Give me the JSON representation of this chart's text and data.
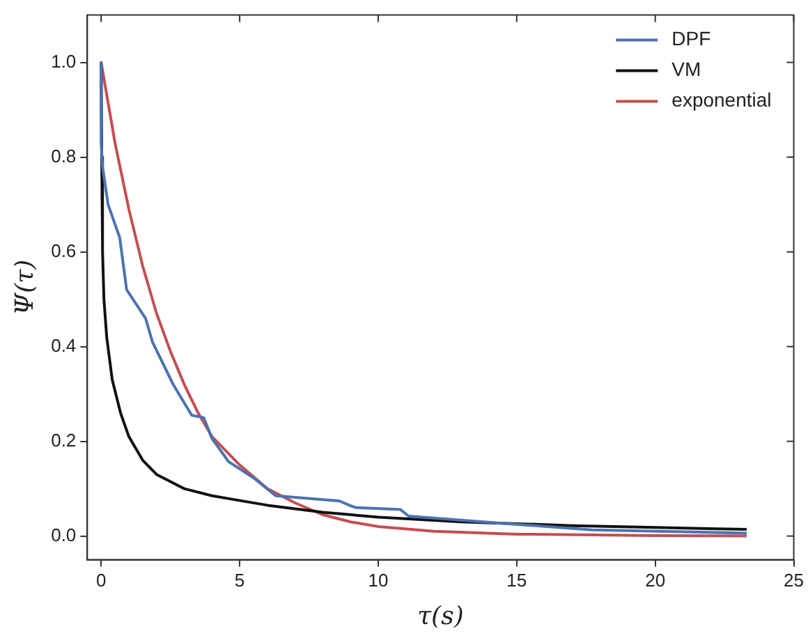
{
  "chart_data": {
    "type": "line",
    "xlabel": "τ(s)",
    "ylabel": "Ψ(τ)",
    "xlim": [
      -0.5,
      25
    ],
    "xticks": [
      0,
      5,
      10,
      15,
      20,
      25
    ],
    "ylim": [
      -0.05,
      1.1
    ],
    "yticks": [
      {
        "value": 0,
        "label": "0.0"
      },
      {
        "value": 0.2,
        "label": "0.2"
      },
      {
        "value": 0.4,
        "label": "0.4"
      },
      {
        "value": 0.6,
        "label": "0.6"
      },
      {
        "value": 0.8,
        "label": "0.8"
      },
      {
        "value": 1,
        "label": "1.0"
      }
    ],
    "grid": false,
    "legend": "top right",
    "marker": "none",
    "line_style": "solid",
    "series": [
      {
        "name": "DPF",
        "color": "#4c72b0",
        "x": [
          0,
          0,
          0.05,
          0.25,
          0.67,
          0.92,
          1.6,
          1.85,
          2.6,
          3.27,
          3.7,
          4.0,
          4.6,
          5.5,
          6.3,
          8.6,
          9.0,
          9.2,
          10.8,
          11.1,
          14.7,
          17.7,
          23.3
        ],
        "values": [
          1.0,
          0.83,
          0.78,
          0.7,
          0.63,
          0.52,
          0.46,
          0.41,
          0.32,
          0.255,
          0.25,
          0.206,
          0.157,
          0.123,
          0.085,
          0.074,
          0.064,
          0.06,
          0.056,
          0.042,
          0.026,
          0.013,
          0.006
        ]
      },
      {
        "name": "VM",
        "color": "#111111",
        "x": [
          0,
          0.02,
          0.05,
          0.1,
          0.2,
          0.4,
          0.7,
          1,
          1.5,
          2,
          3,
          4,
          5,
          6,
          8,
          10,
          13,
          17,
          20,
          23.3
        ],
        "values": [
          1.0,
          0.8,
          0.6,
          0.5,
          0.42,
          0.33,
          0.26,
          0.21,
          0.16,
          0.13,
          0.1,
          0.085,
          0.075,
          0.065,
          0.05,
          0.04,
          0.03,
          0.022,
          0.018,
          0.014
        ]
      },
      {
        "name": "exponential",
        "color": "#c44e52",
        "x": [
          0,
          0.5,
          1,
          1.5,
          2,
          2.5,
          3,
          3.5,
          4,
          5,
          6,
          7,
          8,
          9,
          10,
          12,
          15,
          20,
          23.3
        ],
        "values": [
          1.0,
          0.83,
          0.69,
          0.57,
          0.47,
          0.39,
          0.32,
          0.26,
          0.21,
          0.15,
          0.1,
          0.07,
          0.045,
          0.03,
          0.02,
          0.01,
          0.004,
          0.001,
          0.0
        ]
      }
    ]
  }
}
